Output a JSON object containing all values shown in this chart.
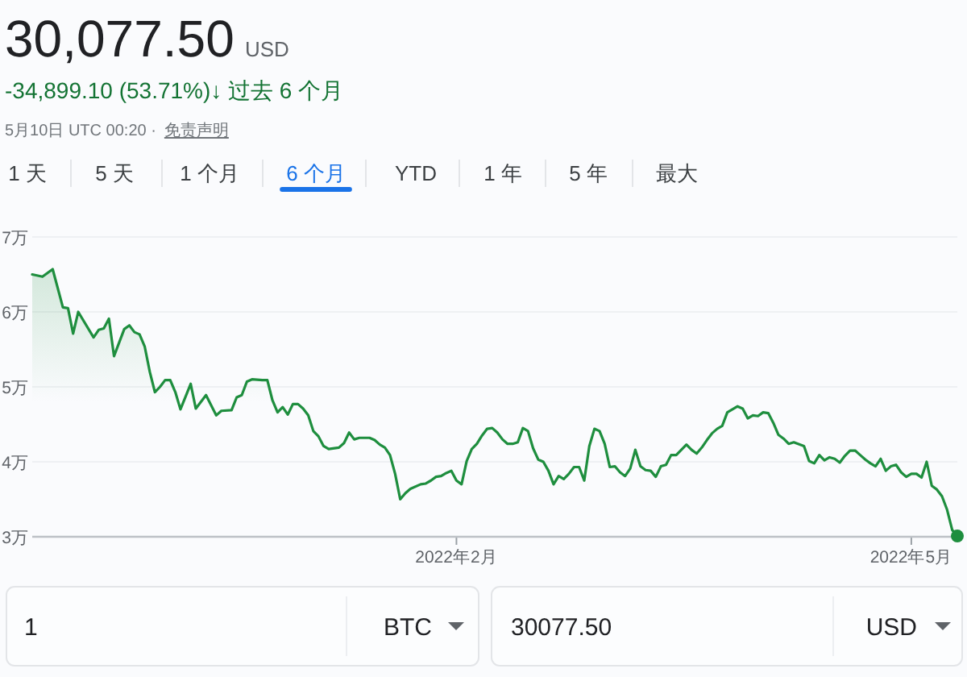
{
  "chart_data": {
    "type": "area",
    "title": "30,077.50",
    "subtitle": "-34,899.10 (53.71%)↓ 过去 6 个月",
    "annotations": [
      "USD",
      "5月10日 UTC 00:20 ·",
      "免责声明",
      "1 天",
      "5 天",
      "1 个月",
      "6 个月",
      "YTD",
      "1 年",
      "5 年",
      "最大",
      "1",
      "BTC",
      "30077.50",
      "USD"
    ],
    "x": [
      "2021-11-10",
      "2021-11-12",
      "2021-11-14",
      "2021-11-16",
      "2021-11-17",
      "2021-11-18",
      "2021-11-19",
      "2021-11-22",
      "2021-11-23",
      "2021-11-24",
      "2021-11-25",
      "2021-11-26",
      "2021-11-28",
      "2021-11-29",
      "2021-11-30",
      "2021-12-01",
      "2021-12-02",
      "2021-12-03",
      "2021-12-04",
      "2021-12-05",
      "2021-12-06",
      "2021-12-07",
      "2021-12-08",
      "2021-12-09",
      "2021-12-10",
      "2021-12-11",
      "2021-12-12",
      "2021-12-14",
      "2021-12-16",
      "2021-12-17",
      "2021-12-19",
      "2021-12-20",
      "2021-12-21",
      "2021-12-22",
      "2021-12-23",
      "2021-12-25",
      "2021-12-26",
      "2021-12-27",
      "2021-12-28",
      "2021-12-29",
      "2021-12-30",
      "2021-12-31",
      "2022-01-01",
      "2022-01-02",
      "2022-01-03",
      "2022-01-04",
      "2022-01-05",
      "2022-01-06",
      "2022-01-07",
      "2022-01-09",
      "2022-01-10",
      "2022-01-11",
      "2022-01-12",
      "2022-01-13",
      "2022-01-15",
      "2022-01-16",
      "2022-01-17",
      "2022-01-18",
      "2022-01-19",
      "2022-01-20",
      "2022-01-21",
      "2022-01-22",
      "2022-01-23",
      "2022-01-25",
      "2022-01-26",
      "2022-01-27",
      "2022-01-28",
      "2022-01-29",
      "2022-01-30",
      "2022-01-31",
      "2022-02-01",
      "2022-02-02",
      "2022-02-03",
      "2022-02-04",
      "2022-02-05",
      "2022-02-06",
      "2022-02-07",
      "2022-02-08",
      "2022-02-09",
      "2022-02-10",
      "2022-02-11",
      "2022-02-12",
      "2022-02-13",
      "2022-02-14",
      "2022-02-15",
      "2022-02-16",
      "2022-02-17",
      "2022-02-18",
      "2022-02-19",
      "2022-02-20",
      "2022-02-21",
      "2022-02-22",
      "2022-02-23",
      "2022-02-24",
      "2022-02-25",
      "2022-02-26",
      "2022-02-27",
      "2022-02-28",
      "2022-03-01",
      "2022-03-02",
      "2022-03-03",
      "2022-03-04",
      "2022-03-05",
      "2022-03-06",
      "2022-03-07",
      "2022-03-08",
      "2022-03-09",
      "2022-03-10",
      "2022-03-11",
      "2022-03-12",
      "2022-03-13",
      "2022-03-14",
      "2022-03-15",
      "2022-03-16",
      "2022-03-17",
      "2022-03-18",
      "2022-03-19",
      "2022-03-20",
      "2022-03-21",
      "2022-03-22",
      "2022-03-23",
      "2022-03-24",
      "2022-03-25",
      "2022-03-26",
      "2022-03-27",
      "2022-03-28",
      "2022-03-29",
      "2022-03-30",
      "2022-03-31",
      "2022-04-01",
      "2022-04-02",
      "2022-04-03",
      "2022-04-04",
      "2022-04-05",
      "2022-04-06",
      "2022-04-07",
      "2022-04-08",
      "2022-04-10",
      "2022-04-11",
      "2022-04-12",
      "2022-04-13",
      "2022-04-14",
      "2022-04-15",
      "2022-04-16",
      "2022-04-17",
      "2022-04-18",
      "2022-04-19",
      "2022-04-20",
      "2022-04-21",
      "2022-04-22",
      "2022-04-23",
      "2022-04-24",
      "2022-04-25",
      "2022-04-26",
      "2022-04-27",
      "2022-04-28",
      "2022-04-29",
      "2022-04-30",
      "2022-05-01",
      "2022-05-02",
      "2022-05-03",
      "2022-05-04",
      "2022-05-05",
      "2022-05-06",
      "2022-05-07",
      "2022-05-08",
      "2022-05-09",
      "2022-05-10"
    ],
    "values": [
      6.5,
      6.47,
      6.57,
      6.06,
      6.05,
      5.71,
      6.0,
      5.66,
      5.76,
      5.78,
      5.91,
      5.41,
      5.77,
      5.82,
      5.73,
      5.7,
      5.54,
      5.2,
      4.93,
      5.0,
      5.09,
      5.09,
      4.93,
      4.7,
      4.87,
      5.04,
      4.71,
      4.89,
      4.62,
      4.68,
      4.69,
      4.86,
      4.89,
      5.07,
      5.1,
      5.09,
      5.09,
      4.82,
      4.66,
      4.73,
      4.63,
      4.77,
      4.77,
      4.71,
      4.62,
      4.41,
      4.34,
      4.21,
      4.17,
      4.19,
      4.25,
      4.39,
      4.3,
      4.32,
      4.32,
      4.29,
      4.23,
      4.19,
      4.09,
      3.84,
      3.5,
      3.58,
      3.64,
      3.7,
      3.71,
      3.75,
      3.8,
      3.81,
      3.85,
      3.88,
      3.75,
      3.7,
      4.01,
      4.17,
      4.24,
      4.35,
      4.44,
      4.45,
      4.39,
      4.3,
      4.24,
      4.24,
      4.26,
      4.45,
      4.41,
      4.18,
      4.03,
      4.0,
      3.88,
      3.7,
      3.81,
      3.77,
      3.84,
      3.93,
      3.93,
      3.75,
      4.21,
      4.44,
      4.41,
      4.24,
      3.93,
      3.94,
      3.86,
      3.81,
      3.91,
      4.16,
      3.94,
      3.89,
      3.88,
      3.8,
      3.94,
      3.96,
      4.09,
      4.09,
      4.16,
      4.23,
      4.16,
      4.11,
      4.19,
      4.29,
      4.38,
      4.44,
      4.48,
      4.66,
      4.7,
      4.74,
      4.71,
      4.58,
      4.62,
      4.61,
      4.66,
      4.65,
      4.52,
      4.36,
      4.31,
      4.24,
      4.26,
      4.21,
      4.01,
      3.98,
      4.09,
      4.02,
      4.06,
      4.04,
      3.99,
      4.08,
      4.15,
      4.15,
      4.09,
      4.03,
      3.98,
      3.94,
      4.04,
      3.88,
      3.94,
      3.96,
      3.86,
      3.8,
      3.84,
      3.84,
      3.79,
      4.0,
      3.68,
      3.63,
      3.54,
      3.36,
      3.09,
      3.01
    ],
    "color": "#1e8e3e",
    "xlim": [
      "2021-11-10",
      "2022-05-10"
    ],
    "xticks": [
      {
        "value": "2022-02-01",
        "label": "2022年2月"
      },
      {
        "value": "2022-05-01",
        "label": "2022年5月"
      }
    ],
    "ylim": [
      3,
      7
    ],
    "yticks": [
      {
        "value": 3,
        "label": "3万"
      },
      {
        "value": 4,
        "label": "4万"
      },
      {
        "value": 5,
        "label": "5万"
      },
      {
        "value": 6,
        "label": "6万"
      },
      {
        "value": 7,
        "label": "7万"
      }
    ],
    "grid": "y"
  }
}
